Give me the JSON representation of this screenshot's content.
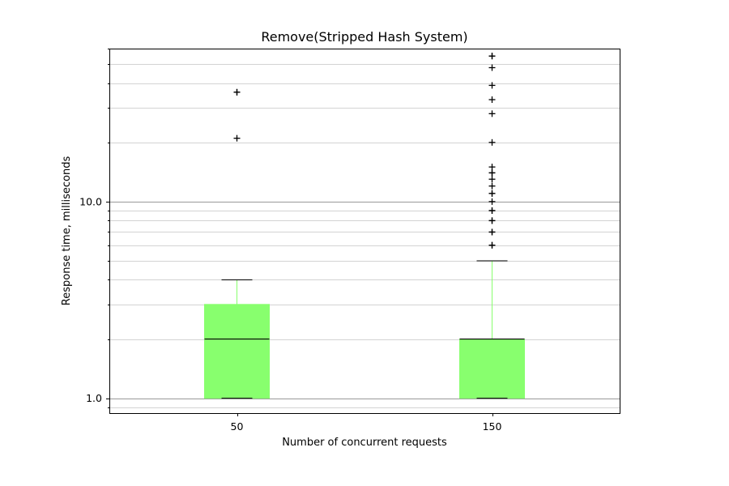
{
  "chart_data": {
    "type": "boxplot",
    "title": "Remove(Stripped Hash System)",
    "xlabel": "Number of concurrent requests",
    "ylabel": "Response time, milliseconds",
    "yscale": "log",
    "ylim": [
      0.84,
      60
    ],
    "yticks_major": [
      1.0,
      10.0
    ],
    "ytick_labels": [
      "1.0",
      "10.0"
    ],
    "grid": true,
    "box_color": "#88ff6e",
    "whisker_color": "#88ff6e",
    "median_color": "#000000",
    "categories": [
      "50",
      "150"
    ],
    "boxes": [
      {
        "category": "50",
        "whislo": 1.0,
        "q1": 1.0,
        "med": 2.0,
        "q3": 3.0,
        "whishi": 4.0,
        "fliers": [
          21,
          36,
          36
        ]
      },
      {
        "category": "150",
        "whislo": 1.0,
        "q1": 1.0,
        "med": 2.0,
        "q3": 2.0,
        "whishi": 5.0,
        "fliers": [
          6,
          6,
          7,
          7,
          8,
          8,
          9,
          9,
          10,
          11,
          11,
          12,
          13,
          14,
          14,
          15,
          20,
          28,
          33,
          39,
          48,
          55,
          55
        ]
      }
    ]
  }
}
